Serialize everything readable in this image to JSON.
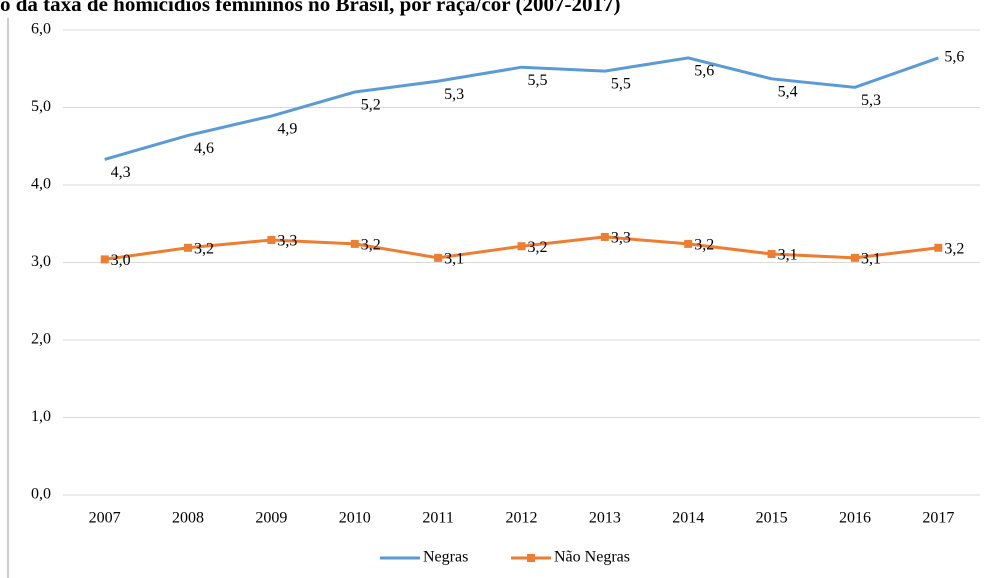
{
  "chart_data": {
    "type": "line",
    "title": "o da taxa de homicídios femininos no Brasil, por raça/cor (2007-2017)",
    "categories": [
      "2007",
      "2008",
      "2009",
      "2010",
      "2011",
      "2012",
      "2013",
      "2014",
      "2015",
      "2016",
      "2017"
    ],
    "series": [
      {
        "name": "Negras",
        "color": "#5b9bd5",
        "values": [
          4.33,
          4.64,
          4.89,
          5.2,
          5.34,
          5.52,
          5.47,
          5.64,
          5.37,
          5.26,
          5.64
        ],
        "value_labels": [
          "4,3",
          "4,6",
          "4,9",
          "5,2",
          "5,3",
          "5,5",
          "5,5",
          "5,6",
          "5,4",
          "5,3",
          "5,6"
        ]
      },
      {
        "name": "Não Negras",
        "color": "#ed7d31",
        "values": [
          3.04,
          3.19,
          3.29,
          3.24,
          3.06,
          3.21,
          3.33,
          3.24,
          3.11,
          3.06,
          3.19
        ],
        "value_labels": [
          "3,0",
          "3,2",
          "3,3",
          "3,2",
          "3,1",
          "3,2",
          "3,3",
          "3,2",
          "3,1",
          "3,1",
          "3,2"
        ]
      }
    ],
    "ylim": [
      0,
      6
    ],
    "yticks": [
      {
        "value": 0,
        "label": "0,0"
      },
      {
        "value": 1,
        "label": "1,0"
      },
      {
        "value": 2,
        "label": "2,0"
      },
      {
        "value": 3,
        "label": "3,0"
      },
      {
        "value": 4,
        "label": "4,0"
      },
      {
        "value": 5,
        "label": "5,0"
      },
      {
        "value": 6,
        "label": "6,0"
      }
    ],
    "grid": true,
    "legend": "bottom"
  }
}
